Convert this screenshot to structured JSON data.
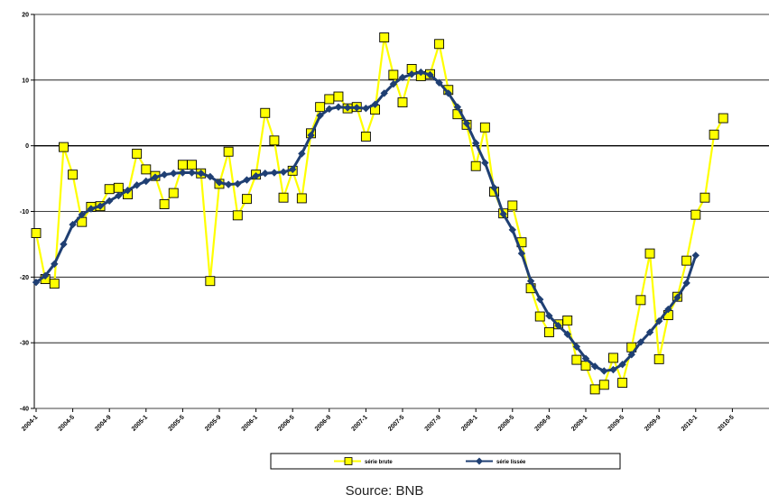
{
  "chart_data": {
    "type": "line",
    "title": "",
    "xlabel": "",
    "ylabel": "",
    "ylim": [
      -40,
      20
    ],
    "yticks": [
      20,
      10,
      0,
      -10,
      -20,
      -30,
      -40
    ],
    "grid": "horizontal",
    "zero_line": true,
    "legend_position": "bottom",
    "x_tick_labels": [
      "2004-1",
      "2004-5",
      "2004-9",
      "2005-1",
      "2005-5",
      "2005-9",
      "2006-1",
      "2006-5",
      "2006-9",
      "2007-1",
      "2007-5",
      "2007-9",
      "2008-1",
      "2008-5",
      "2008-9",
      "2009-1",
      "2009-5",
      "2009-9",
      "2010-1",
      "2010-5"
    ],
    "series": [
      {
        "name": "série brute",
        "color": "#ffff00",
        "marker": "square",
        "values": [
          -13.3,
          -20.3,
          -21.0,
          -0.2,
          -4.4,
          -11.6,
          -9.3,
          -9.2,
          -6.6,
          -6.4,
          -7.4,
          -1.2,
          -3.6,
          -4.6,
          -8.9,
          -7.2,
          -2.9,
          -2.9,
          -4.2,
          -20.6,
          -5.8,
          -0.9,
          -10.6,
          -8.1,
          -4.4,
          5.0,
          0.8,
          -7.9,
          -3.8,
          -8.0,
          1.9,
          5.9,
          7.1,
          7.5,
          5.7,
          5.9,
          1.4,
          5.5,
          16.5,
          10.8,
          6.6,
          11.7,
          10.6,
          10.9,
          15.5,
          8.5,
          4.8,
          3.2,
          -3.1,
          2.8,
          -7.0,
          -10.3,
          -9.1,
          -14.7,
          -21.7,
          -26.0,
          -28.4,
          -27.2,
          -26.6,
          -32.6,
          -33.5,
          -37.1,
          -36.4,
          -32.3,
          -36.1,
          -30.7,
          -23.5,
          -16.4,
          -32.5,
          -25.8,
          -23.0,
          -17.5,
          -10.5,
          -7.9,
          1.7,
          4.2
        ]
      },
      {
        "name": "série lissée",
        "color": "#1f3f73",
        "marker": "diamond",
        "values": [
          -20.8,
          -19.8,
          -18.0,
          -15.0,
          -12.0,
          -10.5,
          -9.6,
          -9.2,
          -8.4,
          -7.6,
          -6.8,
          -6.0,
          -5.4,
          -4.8,
          -4.4,
          -4.2,
          -4.1,
          -4.1,
          -4.2,
          -4.7,
          -5.6,
          -5.9,
          -5.8,
          -5.2,
          -4.6,
          -4.2,
          -4.1,
          -4.0,
          -3.6,
          -1.2,
          1.6,
          4.6,
          5.6,
          5.9,
          5.8,
          5.8,
          5.7,
          6.3,
          8.0,
          9.4,
          10.4,
          10.9,
          11.2,
          10.8,
          9.6,
          8.0,
          5.9,
          3.4,
          0.4,
          -2.6,
          -6.4,
          -10.4,
          -12.8,
          -16.4,
          -20.6,
          -23.4,
          -25.9,
          -27.4,
          -28.7,
          -30.6,
          -32.4,
          -33.6,
          -34.3,
          -34.1,
          -33.3,
          -31.8,
          -29.9,
          -28.4,
          -26.7,
          -24.9,
          -23.1,
          -20.9,
          -16.7
        ]
      }
    ]
  },
  "source_text": "Source: BNB"
}
